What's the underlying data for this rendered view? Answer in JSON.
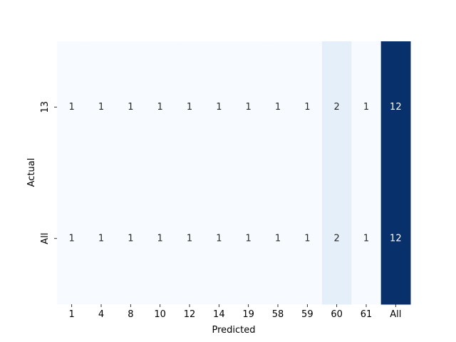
{
  "chart_data": {
    "type": "heatmap",
    "title": "",
    "xlabel": "Predicted",
    "ylabel": "Actual",
    "x_categories": [
      "1",
      "4",
      "8",
      "10",
      "12",
      "14",
      "19",
      "58",
      "59",
      "60",
      "61",
      "All"
    ],
    "y_categories": [
      "13",
      "All"
    ],
    "values": [
      [
        1,
        1,
        1,
        1,
        1,
        1,
        1,
        1,
        1,
        2,
        1,
        12
      ],
      [
        1,
        1,
        1,
        1,
        1,
        1,
        1,
        1,
        1,
        2,
        1,
        12
      ]
    ],
    "colormap": "Blues",
    "color_low": "#f7fbff",
    "color_high": "#08306b",
    "value_range": [
      1,
      12
    ],
    "colorbar": false,
    "grid": false
  }
}
